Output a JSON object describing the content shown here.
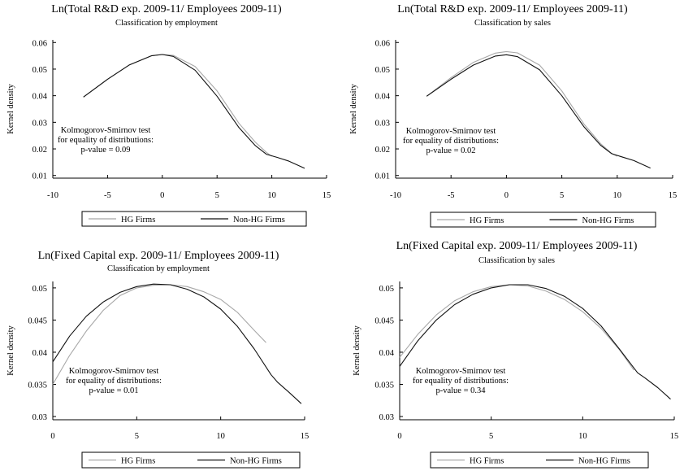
{
  "colors": {
    "hg": "#a8a8a8",
    "nonhg": "#111111",
    "axis": "#000000"
  },
  "chart_data": [
    {
      "type": "line",
      "title": "Ln(Total R&D exp. 2009-11/ Employees 2009-11)",
      "subtitle": "Classification by employment",
      "ylabel": "Kernel density",
      "xlim": [
        -10,
        15
      ],
      "ylim": [
        0.009,
        0.061
      ],
      "xticks": [
        "-10",
        "-5",
        "0",
        "5",
        "10",
        "15"
      ],
      "yticks": [
        "0.01",
        "0.02",
        "0.03",
        "0.04",
        "0.05",
        "0.06"
      ],
      "annotation": [
        "Kolmogorov-Smirnov test",
        "for equality of distributions:",
        "p-value = 0.09"
      ],
      "legend": [
        "HG Firms",
        "Non-HG Firms"
      ],
      "series": [
        {
          "name": "HG Firms",
          "x": [
            -7.2,
            -5,
            -3,
            -1,
            0,
            1,
            3,
            5,
            7,
            8.5,
            9.5,
            10
          ],
          "y": [
            0.0395,
            0.0462,
            0.0516,
            0.055,
            0.0555,
            0.0552,
            0.051,
            0.0418,
            0.0296,
            0.0225,
            0.0187,
            0.0172
          ]
        },
        {
          "name": "Non-HG Firms",
          "x": [
            -7.2,
            -5,
            -3,
            -1,
            0,
            1,
            3,
            5,
            7,
            8.5,
            9.5,
            10.5,
            11.5,
            13
          ],
          "y": [
            0.0395,
            0.0462,
            0.0516,
            0.055,
            0.0555,
            0.0548,
            0.0496,
            0.0398,
            0.028,
            0.0212,
            0.018,
            0.0168,
            0.0155,
            0.0127
          ]
        }
      ]
    },
    {
      "type": "line",
      "title": "Ln(Total R&D exp. 2009-11/ Employees 2009-11)",
      "subtitle": "Classification by sales",
      "ylabel": "Kernel density",
      "xlim": [
        -10,
        15
      ],
      "ylim": [
        0.009,
        0.061
      ],
      "xticks": [
        "-10",
        "-5",
        "0",
        "5",
        "10",
        "15"
      ],
      "yticks": [
        "0.01",
        "0.02",
        "0.03",
        "0.04",
        "0.05",
        "0.06"
      ],
      "annotation": [
        "Kolmogorov-Smirnov test",
        "for equality of distributions:",
        "p-value = 0.02"
      ],
      "legend": [
        "HG Firms",
        "Non-HG Firms"
      ],
      "series": [
        {
          "name": "HG Firms",
          "x": [
            -7.2,
            -5,
            -3,
            -1,
            0,
            1,
            3,
            5,
            7,
            8.5,
            9.5,
            10
          ],
          "y": [
            0.0398,
            0.0468,
            0.0525,
            0.056,
            0.0566,
            0.0561,
            0.0515,
            0.0418,
            0.0293,
            0.022,
            0.0183,
            0.0172
          ]
        },
        {
          "name": "Non-HG Firms",
          "x": [
            -7.2,
            -5,
            -3,
            -1,
            0,
            1,
            3,
            5,
            7,
            8.5,
            9.5,
            10.5,
            11.5,
            13
          ],
          "y": [
            0.0398,
            0.0462,
            0.0515,
            0.0549,
            0.0554,
            0.0547,
            0.0497,
            0.04,
            0.0283,
            0.0214,
            0.0182,
            0.0169,
            0.0156,
            0.0128
          ]
        }
      ]
    },
    {
      "type": "line",
      "title": "Ln(Fixed Capital exp. 2009-11/ Employees 2009-11)",
      "subtitle": "Classification by employment",
      "ylabel": "Kernel density",
      "xlim": [
        0,
        15
      ],
      "ylim": [
        0.0295,
        0.051
      ],
      "xticks": [
        "0",
        "5",
        "10",
        "15"
      ],
      "yticks": [
        "0.03",
        "0.035",
        "0.04",
        "0.045",
        "0.05"
      ],
      "annotation": [
        "Kolmogorov-Smirnov test",
        "for equality of distributions:",
        "p-value = 0.01"
      ],
      "legend": [
        "HG Firms",
        "Non-HG Firms"
      ],
      "series": [
        {
          "name": "HG Firms",
          "x": [
            0,
            1,
            2,
            3,
            4,
            5,
            6,
            7,
            8,
            9,
            10,
            11,
            12,
            12.7
          ],
          "y": [
            0.035,
            0.0395,
            0.0433,
            0.0465,
            0.0488,
            0.05,
            0.0504,
            0.0505,
            0.0502,
            0.0494,
            0.0482,
            0.0462,
            0.0434,
            0.0415
          ]
        },
        {
          "name": "Non-HG Firms",
          "x": [
            0,
            1,
            2,
            3,
            4,
            5,
            6,
            7,
            8,
            9,
            10,
            11,
            12,
            13,
            13.4,
            14.1,
            14.8
          ],
          "y": [
            0.0385,
            0.0425,
            0.0456,
            0.0478,
            0.0493,
            0.0502,
            0.0506,
            0.0505,
            0.0498,
            0.0486,
            0.0467,
            0.044,
            0.0405,
            0.0365,
            0.0353,
            0.0337,
            0.032
          ]
        }
      ]
    },
    {
      "type": "line",
      "title": "Ln(Fixed Capital exp. 2009-11/ Employees 2009-11)",
      "subtitle": "Classification by sales",
      "ylabel": "Kernel density",
      "xlim": [
        0,
        15
      ],
      "ylim": [
        0.0295,
        0.051
      ],
      "xticks": [
        "0",
        "5",
        "10",
        "15"
      ],
      "yticks": [
        "0.03",
        "0.035",
        "0.04",
        "0.045",
        "0.05"
      ],
      "annotation": [
        "Kolmogorov-Smirnov test",
        "for equality of distributions:",
        "p-value = 0.34"
      ],
      "legend": [
        "HG Firms",
        "Non-HG Firms"
      ],
      "series": [
        {
          "name": "HG Firms",
          "x": [
            0,
            1,
            2,
            3,
            4,
            5,
            6,
            7,
            8,
            9,
            10,
            11,
            12,
            12.8
          ],
          "y": [
            0.0392,
            0.0428,
            0.0458,
            0.048,
            0.0494,
            0.0502,
            0.0505,
            0.0503,
            0.0495,
            0.0482,
            0.0463,
            0.0437,
            0.0404,
            0.0372
          ]
        },
        {
          "name": "Non-HG Firms",
          "x": [
            0,
            1,
            2,
            3,
            4,
            5,
            6,
            7,
            8,
            9,
            10,
            11,
            12,
            13,
            13.4,
            14.1,
            14.8
          ],
          "y": [
            0.0378,
            0.0418,
            0.045,
            0.0474,
            0.049,
            0.05,
            0.0505,
            0.0505,
            0.0499,
            0.0487,
            0.0468,
            0.0441,
            0.0405,
            0.0368,
            0.036,
            0.0345,
            0.0327
          ]
        }
      ]
    }
  ]
}
